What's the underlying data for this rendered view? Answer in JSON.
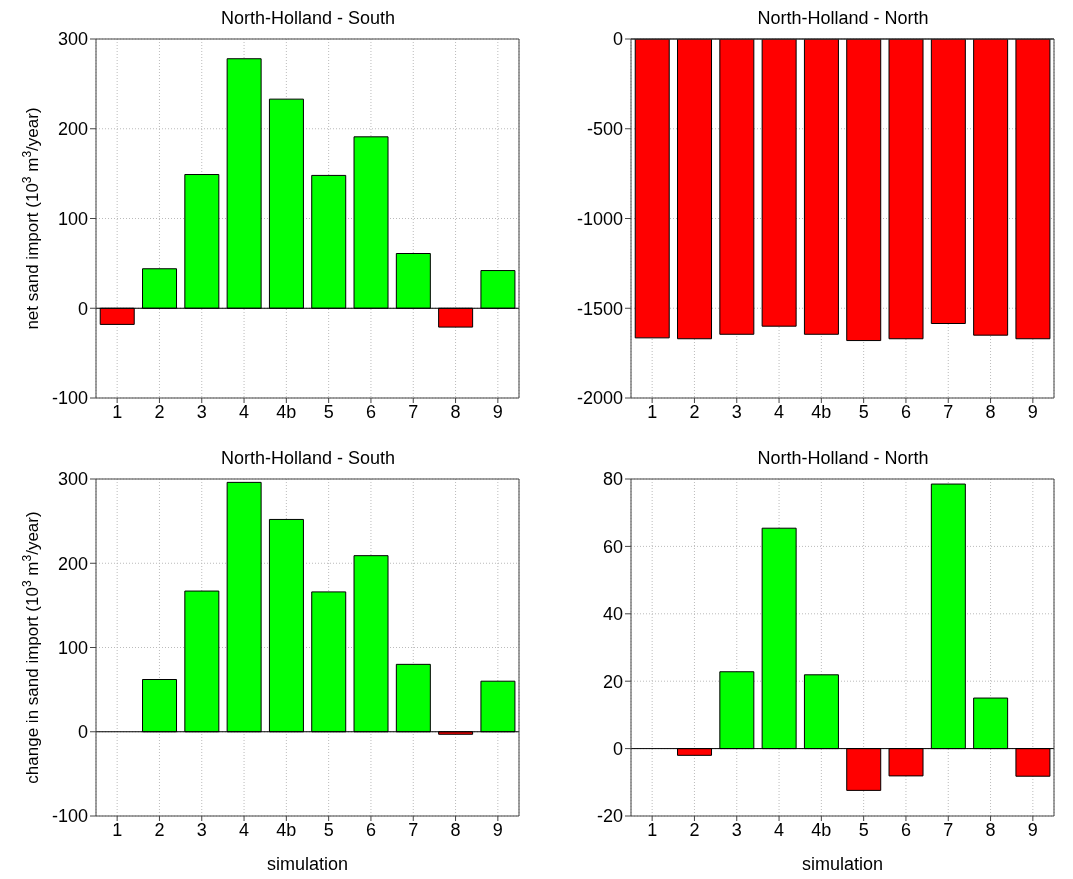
{
  "chart_data": [
    {
      "type": "bar",
      "title": "North-Holland - South",
      "ylabel": "net sand import (10$^{3}$ m$^{3}$/year)",
      "categories": [
        "1",
        "2",
        "3",
        "4",
        "4b",
        "5",
        "6",
        "7",
        "8",
        "9"
      ],
      "values": [
        -18,
        44,
        149,
        278,
        233,
        148,
        191,
        61,
        -21,
        42
      ],
      "colors": [
        "#ff0000",
        "#00ff00",
        "#00ff00",
        "#00ff00",
        "#00ff00",
        "#00ff00",
        "#00ff00",
        "#00ff00",
        "#ff0000",
        "#00ff00"
      ],
      "ylim": [
        -100,
        300
      ],
      "yticks": [
        -100,
        0,
        100,
        200,
        300
      ],
      "grid": true
    },
    {
      "type": "bar",
      "title": "North-Holland - North",
      "categories": [
        "1",
        "2",
        "3",
        "4",
        "4b",
        "5",
        "6",
        "7",
        "8",
        "9"
      ],
      "values": [
        -1665,
        -1670,
        -1645,
        -1600,
        -1645,
        -1680,
        -1670,
        -1585,
        -1650,
        -1670
      ],
      "colors": [
        "#ff0000",
        "#ff0000",
        "#ff0000",
        "#ff0000",
        "#ff0000",
        "#ff0000",
        "#ff0000",
        "#ff0000",
        "#ff0000",
        "#ff0000"
      ],
      "ylim": [
        -2000,
        0
      ],
      "yticks": [
        -2000,
        -1500,
        -1000,
        -500,
        0
      ],
      "grid": true
    },
    {
      "type": "bar",
      "title": "North-Holland - South",
      "ylabel": "change in sand import (10$^{3}$ m$^{3}$/year)",
      "xlabel": "simulation",
      "categories": [
        "1",
        "2",
        "3",
        "4",
        "4b",
        "5",
        "6",
        "7",
        "8",
        "9"
      ],
      "values": [
        0,
        62,
        167,
        296,
        252,
        166,
        209,
        80,
        -3,
        60
      ],
      "colors": [
        "#00ff00",
        "#00ff00",
        "#00ff00",
        "#00ff00",
        "#00ff00",
        "#00ff00",
        "#00ff00",
        "#00ff00",
        "#ff0000",
        "#00ff00"
      ],
      "ylim": [
        -100,
        300
      ],
      "yticks": [
        -100,
        0,
        100,
        200,
        300
      ],
      "grid": true
    },
    {
      "type": "bar",
      "title": "North-Holland - North",
      "xlabel": "simulation",
      "categories": [
        "1",
        "2",
        "3",
        "4",
        "4b",
        "5",
        "6",
        "7",
        "8",
        "9"
      ],
      "values": [
        0,
        -2,
        22.8,
        65.4,
        21.9,
        -12.4,
        -8.1,
        78.5,
        15,
        -8.2
      ],
      "colors": [
        "#00ff00",
        "#ff0000",
        "#00ff00",
        "#00ff00",
        "#00ff00",
        "#ff0000",
        "#ff0000",
        "#00ff00",
        "#00ff00",
        "#ff0000"
      ],
      "ylim": [
        -20,
        80
      ],
      "yticks": [
        -20,
        0,
        20,
        40,
        60,
        80
      ],
      "grid": true
    }
  ]
}
